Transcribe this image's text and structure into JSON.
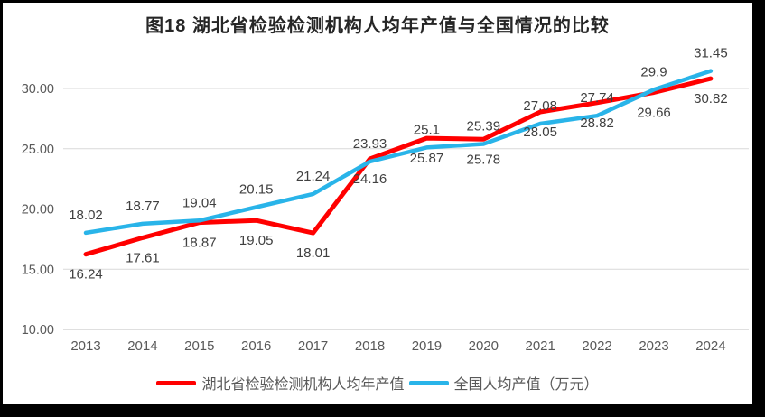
{
  "title": "图18 湖北省检验检测机构人均年产值与全国情况的比较",
  "chart_data": {
    "type": "line",
    "title": "图18 湖北省检验检测机构人均年产值与全国情况的比较",
    "categories": [
      "2013",
      "2014",
      "2015",
      "2016",
      "2017",
      "2018",
      "2019",
      "2020",
      "2021",
      "2022",
      "2023",
      "2024"
    ],
    "series": [
      {
        "name": "湖北省检验检测机构人均年产值",
        "color": "#FF0000",
        "line_width": 5,
        "label_position": "below",
        "values": [
          16.24,
          17.61,
          18.87,
          19.05,
          18.01,
          24.16,
          25.87,
          25.78,
          28.05,
          28.82,
          29.66,
          30.82
        ]
      },
      {
        "name": "全国人均产值（万元）",
        "color": "#29B4E9",
        "line_width": 4.5,
        "label_position": "above",
        "values": [
          18.02,
          18.77,
          19.04,
          20.15,
          21.24,
          23.93,
          25.1,
          25.39,
          27.08,
          27.74,
          29.9,
          31.45
        ]
      }
    ],
    "yticks": [
      {
        "value": 10,
        "label": "10.00"
      },
      {
        "value": 15,
        "label": "15.00"
      },
      {
        "value": 20,
        "label": "20.00"
      },
      {
        "value": 25,
        "label": "25.00"
      },
      {
        "value": 30,
        "label": "30.00"
      }
    ],
    "ylim": [
      10,
      32.5
    ],
    "grid": true,
    "legend_position": "bottom",
    "colors": {
      "grid": "#D9D9D9",
      "axis_line": "#BFBFBF",
      "tick_text": "#595959",
      "data_label_text": "#404040",
      "title_text": "#262626"
    }
  }
}
